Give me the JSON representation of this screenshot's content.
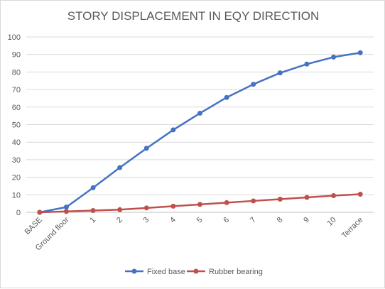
{
  "chart_data": {
    "type": "line",
    "title": "STORY DISPLACEMENT IN EQY DIRECTION",
    "xlabel": "",
    "ylabel": "",
    "categories": [
      "BASE",
      "Ground floor",
      "1",
      "2",
      "3",
      "4",
      "5",
      "6",
      "7",
      "8",
      "9",
      "10",
      "Terrace"
    ],
    "ylim": [
      0,
      100
    ],
    "yticks": [
      0,
      10,
      20,
      30,
      40,
      50,
      60,
      70,
      80,
      90,
      100
    ],
    "grid": true,
    "legend": "bottom",
    "series": [
      {
        "name": "Fixed base",
        "color": "#4472C4",
        "values": [
          0,
          3,
          14,
          25.5,
          36.5,
          47,
          56.5,
          65.5,
          73,
          79.5,
          84.5,
          88.5,
          91
        ]
      },
      {
        "name": "Rubber bearing",
        "color": "#C0504D",
        "values": [
          0,
          0.5,
          1,
          1.5,
          2.5,
          3.5,
          4.5,
          5.5,
          6.5,
          7.5,
          8.5,
          9.5,
          10.3
        ]
      }
    ]
  }
}
